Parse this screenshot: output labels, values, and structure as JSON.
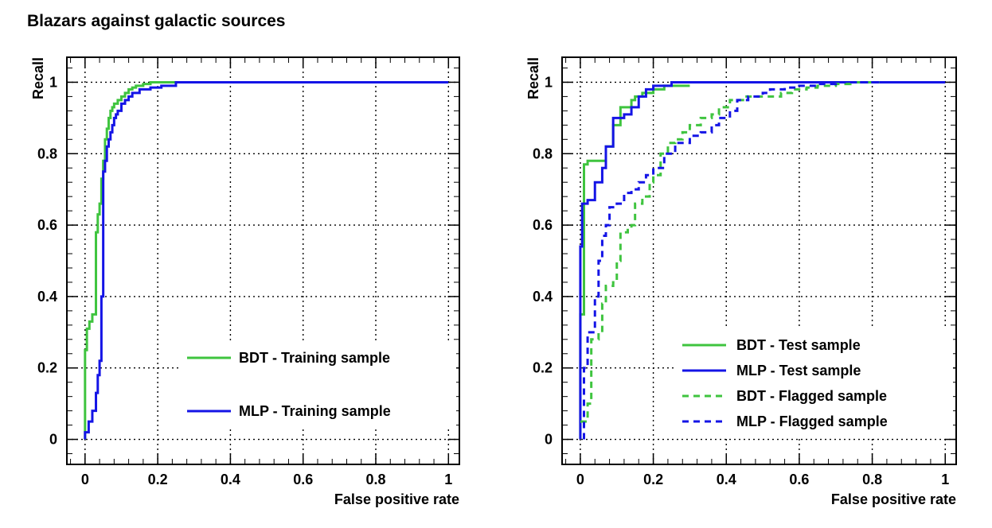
{
  "title": "Blazars against galactic sources",
  "chart_data": [
    {
      "type": "line",
      "name": "training",
      "xlabel": "False positive rate",
      "ylabel": "Recall",
      "xlim": [
        -0.05,
        1.03
      ],
      "ylim": [
        -0.07,
        1.07
      ],
      "xticks": [
        0,
        0.2,
        0.4,
        0.6,
        0.8,
        1
      ],
      "xtick_labels": [
        "0",
        "0.2",
        "0.4",
        "0.6",
        "0.8",
        "1"
      ],
      "yticks": [
        0,
        0.2,
        0.4,
        0.6,
        0.8,
        1
      ],
      "ytick_labels": [
        "0",
        "0.2",
        "0.4",
        "0.6",
        "0.8",
        "1"
      ],
      "grid": true,
      "legend": "right",
      "series": [
        {
          "name": "BDT - Training sample",
          "color": "#3fc43f",
          "dash": false,
          "x": [
            0,
            0,
            0.005,
            0.005,
            0.012,
            0.012,
            0.02,
            0.02,
            0.03,
            0.03,
            0.035,
            0.035,
            0.04,
            0.04,
            0.045,
            0.045,
            0.05,
            0.05,
            0.055,
            0.055,
            0.06,
            0.06,
            0.065,
            0.065,
            0.07,
            0.07,
            0.075,
            0.075,
            0.08,
            0.08,
            0.09,
            0.09,
            0.1,
            0.1,
            0.11,
            0.11,
            0.12,
            0.12,
            0.13,
            0.13,
            0.14,
            0.14,
            0.16,
            0.16,
            0.18,
            0.18,
            0.22,
            0.22,
            0.26,
            0.26,
            1
          ],
          "y": [
            0,
            0.25,
            0.25,
            0.31,
            0.31,
            0.33,
            0.33,
            0.35,
            0.35,
            0.58,
            0.58,
            0.63,
            0.63,
            0.66,
            0.66,
            0.73,
            0.73,
            0.78,
            0.78,
            0.84,
            0.84,
            0.87,
            0.87,
            0.9,
            0.9,
            0.92,
            0.92,
            0.93,
            0.93,
            0.94,
            0.94,
            0.95,
            0.95,
            0.96,
            0.96,
            0.97,
            0.97,
            0.98,
            0.98,
            0.985,
            0.985,
            0.99,
            0.99,
            0.995,
            0.995,
            1,
            1,
            1,
            1,
            1,
            1
          ]
        },
        {
          "name": "MLP - Training sample",
          "color": "#1414e6",
          "dash": false,
          "x": [
            0,
            0,
            0.01,
            0.01,
            0.02,
            0.02,
            0.03,
            0.03,
            0.035,
            0.035,
            0.04,
            0.04,
            0.045,
            0.045,
            0.05,
            0.05,
            0.055,
            0.055,
            0.06,
            0.06,
            0.065,
            0.065,
            0.07,
            0.07,
            0.075,
            0.075,
            0.08,
            0.08,
            0.085,
            0.085,
            0.09,
            0.09,
            0.1,
            0.1,
            0.11,
            0.11,
            0.12,
            0.12,
            0.13,
            0.13,
            0.15,
            0.15,
            0.18,
            0.18,
            0.21,
            0.21,
            0.25,
            0.25,
            1
          ],
          "y": [
            0,
            0.02,
            0.02,
            0.05,
            0.05,
            0.08,
            0.08,
            0.13,
            0.13,
            0.18,
            0.18,
            0.22,
            0.22,
            0.4,
            0.4,
            0.75,
            0.75,
            0.78,
            0.78,
            0.82,
            0.82,
            0.84,
            0.84,
            0.86,
            0.86,
            0.88,
            0.88,
            0.9,
            0.9,
            0.91,
            0.91,
            0.92,
            0.92,
            0.94,
            0.94,
            0.95,
            0.95,
            0.96,
            0.96,
            0.97,
            0.97,
            0.98,
            0.98,
            0.985,
            0.985,
            0.99,
            0.99,
            1,
            1
          ]
        }
      ]
    },
    {
      "type": "line",
      "name": "test-flagged",
      "xlabel": "False positive rate",
      "ylabel": "Recall",
      "xlim": [
        -0.05,
        1.03
      ],
      "ylim": [
        -0.07,
        1.07
      ],
      "xticks": [
        0,
        0.2,
        0.4,
        0.6,
        0.8,
        1
      ],
      "xtick_labels": [
        "0",
        "0.2",
        "0.4",
        "0.6",
        "0.8",
        "1"
      ],
      "yticks": [
        0,
        0.2,
        0.4,
        0.6,
        0.8,
        1
      ],
      "ytick_labels": [
        "0",
        "0.2",
        "0.4",
        "0.6",
        "0.8",
        "1"
      ],
      "grid": true,
      "legend": "bottom-right",
      "series": [
        {
          "name": "BDT - Test sample",
          "color": "#3fc43f",
          "dash": false,
          "x": [
            0,
            0,
            0.01,
            0.01,
            0.02,
            0.02,
            0.07,
            0.07,
            0.09,
            0.09,
            0.11,
            0.11,
            0.14,
            0.14,
            0.15,
            0.15,
            0.17,
            0.17,
            0.2,
            0.2,
            0.23,
            0.23,
            0.3
          ],
          "y": [
            0,
            0.35,
            0.35,
            0.77,
            0.77,
            0.78,
            0.78,
            0.82,
            0.82,
            0.88,
            0.88,
            0.93,
            0.93,
            0.95,
            0.95,
            0.96,
            0.96,
            0.97,
            0.97,
            0.98,
            0.98,
            0.99,
            0.99
          ]
        },
        {
          "name": "MLP - Test sample",
          "color": "#1414e6",
          "dash": false,
          "x": [
            0,
            0,
            0.005,
            0.005,
            0.02,
            0.02,
            0.04,
            0.04,
            0.06,
            0.06,
            0.07,
            0.07,
            0.09,
            0.09,
            0.12,
            0.12,
            0.14,
            0.14,
            0.16,
            0.16,
            0.18,
            0.18,
            0.2,
            0.2,
            0.25,
            0.25,
            1
          ],
          "y": [
            0,
            0.54,
            0.54,
            0.66,
            0.66,
            0.67,
            0.67,
            0.72,
            0.72,
            0.76,
            0.76,
            0.82,
            0.82,
            0.9,
            0.9,
            0.91,
            0.91,
            0.93,
            0.93,
            0.96,
            0.96,
            0.98,
            0.98,
            0.99,
            0.99,
            1,
            1
          ]
        },
        {
          "name": "BDT - Flagged sample",
          "color": "#3fc43f",
          "dash": true,
          "x": [
            0,
            0.02,
            0.02,
            0.03,
            0.03,
            0.05,
            0.05,
            0.06,
            0.06,
            0.07,
            0.07,
            0.09,
            0.09,
            0.1,
            0.1,
            0.11,
            0.11,
            0.13,
            0.13,
            0.14,
            0.14,
            0.15,
            0.15,
            0.17,
            0.17,
            0.19,
            0.19,
            0.2,
            0.2,
            0.22,
            0.22,
            0.24,
            0.24,
            0.26,
            0.26,
            0.28,
            0.28,
            0.3,
            0.3,
            0.33,
            0.33,
            0.36,
            0.36,
            0.38,
            0.38,
            0.41,
            0.41,
            0.45,
            0.45,
            0.5,
            0.5,
            0.55,
            0.55,
            0.58,
            0.58,
            0.62,
            0.62,
            0.65,
            0.65,
            0.7,
            0.7,
            0.74,
            0.74,
            0.82
          ],
          "y": [
            0.05,
            0.05,
            0.1,
            0.1,
            0.28,
            0.28,
            0.3,
            0.3,
            0.38,
            0.38,
            0.43,
            0.43,
            0.44,
            0.44,
            0.5,
            0.5,
            0.58,
            0.58,
            0.59,
            0.59,
            0.6,
            0.6,
            0.66,
            0.66,
            0.68,
            0.68,
            0.72,
            0.72,
            0.74,
            0.74,
            0.8,
            0.8,
            0.83,
            0.83,
            0.84,
            0.84,
            0.86,
            0.86,
            0.88,
            0.88,
            0.9,
            0.9,
            0.91,
            0.91,
            0.93,
            0.93,
            0.95,
            0.95,
            0.96,
            0.96,
            0.96,
            0.96,
            0.97,
            0.97,
            0.98,
            0.98,
            0.985,
            0.985,
            0.99,
            0.99,
            0.995,
            0.995,
            1,
            1
          ]
        },
        {
          "name": "MLP - Flagged sample",
          "color": "#1414e6",
          "dash": true,
          "x": [
            0.01,
            0.01,
            0.02,
            0.02,
            0.04,
            0.04,
            0.05,
            0.05,
            0.06,
            0.06,
            0.07,
            0.07,
            0.08,
            0.08,
            0.1,
            0.1,
            0.12,
            0.12,
            0.14,
            0.14,
            0.16,
            0.16,
            0.18,
            0.18,
            0.2,
            0.2,
            0.23,
            0.23,
            0.26,
            0.26,
            0.3,
            0.3,
            0.33,
            0.33,
            0.36,
            0.36,
            0.38,
            0.38,
            0.41,
            0.41,
            0.43,
            0.43,
            0.46,
            0.46,
            0.5,
            0.5,
            0.52,
            0.52,
            0.56,
            0.56,
            0.6,
            0.6,
            0.65,
            0.65,
            0.7,
            0.7,
            1
          ],
          "y": [
            0,
            0.2,
            0.2,
            0.3,
            0.3,
            0.4,
            0.4,
            0.5,
            0.5,
            0.57,
            0.57,
            0.6,
            0.6,
            0.65,
            0.65,
            0.66,
            0.66,
            0.69,
            0.69,
            0.7,
            0.7,
            0.72,
            0.72,
            0.74,
            0.74,
            0.76,
            0.76,
            0.8,
            0.8,
            0.83,
            0.83,
            0.85,
            0.85,
            0.86,
            0.86,
            0.88,
            0.88,
            0.9,
            0.9,
            0.92,
            0.92,
            0.95,
            0.95,
            0.96,
            0.96,
            0.97,
            0.97,
            0.98,
            0.98,
            0.985,
            0.985,
            0.99,
            0.99,
            0.995,
            0.995,
            1,
            1
          ]
        }
      ]
    }
  ]
}
